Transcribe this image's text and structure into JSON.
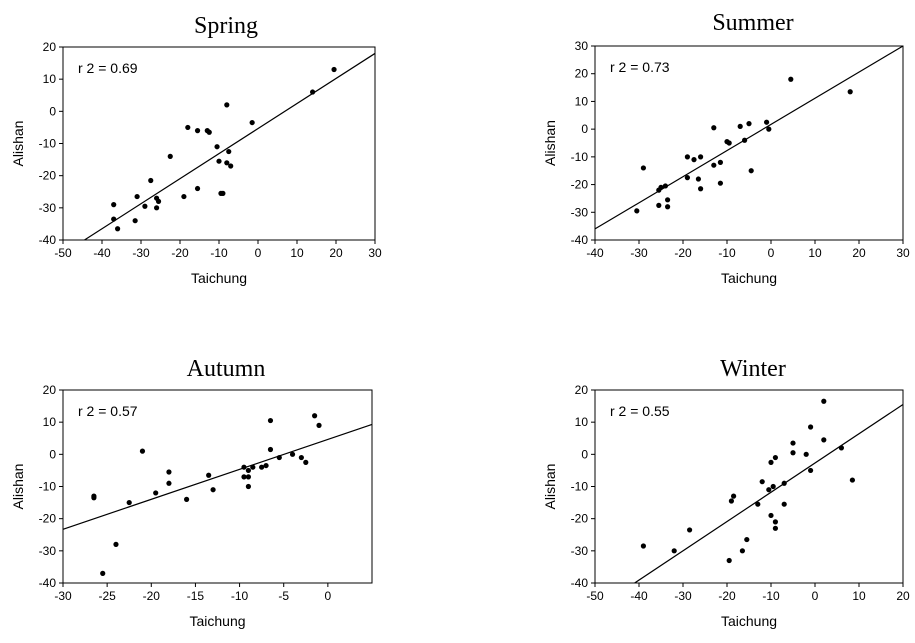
{
  "chart_data": [
    {
      "type": "scatter",
      "title": "Spring",
      "xlabel": "Taichung",
      "ylabel": "Alishan",
      "annotation": "r 2 = 0.69",
      "xlim": [
        -50,
        30
      ],
      "ylim": [
        -40,
        20
      ],
      "xticks": [
        -50,
        -40,
        -30,
        -20,
        -10,
        0,
        10,
        20,
        30
      ],
      "yticks": [
        -40,
        -30,
        -20,
        -10,
        0,
        10,
        20
      ],
      "grid": false,
      "fit_line": [
        [
          -44.5,
          -40
        ],
        [
          30,
          18
        ]
      ],
      "points": [
        [
          19.5,
          13
        ],
        [
          14,
          6
        ],
        [
          -1.5,
          -3.5
        ],
        [
          -8,
          2
        ],
        [
          -7.5,
          -12.5
        ],
        [
          -7,
          -17
        ],
        [
          -8,
          -16
        ],
        [
          -10,
          -15.5
        ],
        [
          -12.5,
          -6.5
        ],
        [
          -13,
          -6
        ],
        [
          -15.5,
          -6
        ],
        [
          -18,
          -5
        ],
        [
          -22.5,
          -14
        ],
        [
          -10.5,
          -11
        ],
        [
          -15.5,
          -24
        ],
        [
          -19,
          -26.5
        ],
        [
          -9.5,
          -25.5
        ],
        [
          -9,
          -25.5
        ],
        [
          -27.5,
          -21.5
        ],
        [
          -26,
          -27
        ],
        [
          -25.5,
          -28
        ],
        [
          -26,
          -30
        ],
        [
          -29,
          -29.5
        ],
        [
          -31,
          -26.5
        ],
        [
          -31.5,
          -34
        ],
        [
          -37,
          -33.5
        ],
        [
          -37,
          -29
        ],
        [
          -36,
          -36.5
        ]
      ]
    },
    {
      "type": "scatter",
      "title": "Summer",
      "xlabel": "Taichung",
      "ylabel": "Alishan",
      "annotation": "r 2 = 0.73",
      "xlim": [
        -40,
        30
      ],
      "ylim": [
        -40,
        30
      ],
      "xticks": [
        -40,
        -30,
        -20,
        -10,
        0,
        10,
        20,
        30
      ],
      "yticks": [
        -40,
        -30,
        -20,
        -10,
        0,
        10,
        20,
        30
      ],
      "grid": false,
      "fit_line": [
        [
          -40,
          -36
        ],
        [
          30,
          30
        ]
      ],
      "points": [
        [
          4.5,
          18
        ],
        [
          18,
          13.5
        ],
        [
          -1,
          2.5
        ],
        [
          -0.5,
          0
        ],
        [
          -5,
          2
        ],
        [
          -7,
          1
        ],
        [
          -13,
          0.5
        ],
        [
          -6,
          -4
        ],
        [
          -10,
          -4.5
        ],
        [
          -9.5,
          -5
        ],
        [
          -11.5,
          -12
        ],
        [
          -13,
          -13
        ],
        [
          -16,
          -10
        ],
        [
          -17.5,
          -11
        ],
        [
          -19,
          -10
        ],
        [
          -4.5,
          -15
        ],
        [
          -11.5,
          -19.5
        ],
        [
          -16.5,
          -18
        ],
        [
          -16,
          -21.5
        ],
        [
          -19,
          -17.5
        ],
        [
          -24,
          -20.5
        ],
        [
          -25,
          -21
        ],
        [
          -25.5,
          -22
        ],
        [
          -29,
          -14
        ],
        [
          -23.5,
          -25.5
        ],
        [
          -23.5,
          -28
        ],
        [
          -25.5,
          -27.5
        ],
        [
          -30.5,
          -29.5
        ]
      ]
    },
    {
      "type": "scatter",
      "title": "Autumn",
      "xlabel": "Taichung",
      "ylabel": "Alishan",
      "annotation": "r 2 = 0.57",
      "xlim": [
        -30,
        5
      ],
      "ylim": [
        -40,
        20
      ],
      "xticks": [
        -30,
        -25,
        -20,
        -15,
        -10,
        -5,
        0
      ],
      "yticks": [
        -40,
        -30,
        -20,
        -10,
        0,
        10,
        20
      ],
      "grid": false,
      "fit_line": [
        [
          -30,
          -23.3
        ],
        [
          5,
          9.3
        ]
      ],
      "points": [
        [
          -1.5,
          12
        ],
        [
          -1,
          9
        ],
        [
          -6.5,
          10.5
        ],
        [
          -21,
          1
        ],
        [
          -6.5,
          1.5
        ],
        [
          -2.5,
          -2.5
        ],
        [
          -3,
          -1
        ],
        [
          -4,
          0
        ],
        [
          -5.5,
          -1
        ],
        [
          -7,
          -3.5
        ],
        [
          -7.5,
          -4
        ],
        [
          -8.5,
          -4
        ],
        [
          -9,
          -5
        ],
        [
          -9,
          -7
        ],
        [
          -9.5,
          -7
        ],
        [
          -9,
          -10
        ],
        [
          -9.5,
          -4
        ],
        [
          -13.5,
          -6.5
        ],
        [
          -13,
          -11
        ],
        [
          -16,
          -14
        ],
        [
          -18,
          -5.5
        ],
        [
          -18,
          -9
        ],
        [
          -19.5,
          -12
        ],
        [
          -22.5,
          -15
        ],
        [
          -26.5,
          -13.5
        ],
        [
          -26.5,
          -13
        ],
        [
          -24,
          -28
        ],
        [
          -25.5,
          -37
        ]
      ]
    },
    {
      "type": "scatter",
      "title": "Winter",
      "xlabel": "Taichung",
      "ylabel": "Alishan",
      "annotation": "r 2 = 0.55",
      "xlim": [
        -50,
        20
      ],
      "ylim": [
        -40,
        20
      ],
      "xticks": [
        -50,
        -40,
        -30,
        -20,
        -10,
        0,
        10,
        20
      ],
      "yticks": [
        -40,
        -30,
        -20,
        -10,
        0,
        10,
        20
      ],
      "grid": false,
      "fit_line": [
        [
          -41,
          -40
        ],
        [
          20,
          15.5
        ]
      ],
      "points": [
        [
          2,
          16.5
        ],
        [
          -1,
          8.5
        ],
        [
          2,
          4.5
        ],
        [
          6,
          2
        ],
        [
          -5,
          3.5
        ],
        [
          -5,
          0.5
        ],
        [
          -2,
          0
        ],
        [
          -9,
          -1
        ],
        [
          -10,
          -2.5
        ],
        [
          -1,
          -5
        ],
        [
          8.5,
          -8
        ],
        [
          -12,
          -8.5
        ],
        [
          -7,
          -9
        ],
        [
          -9.5,
          -10
        ],
        [
          -10.5,
          -11
        ],
        [
          -10,
          -19
        ],
        [
          -9,
          -21
        ],
        [
          -9,
          -23
        ],
        [
          -7,
          -15.5
        ],
        [
          -13,
          -15.5
        ],
        [
          -18.5,
          -13
        ],
        [
          -19,
          -14.5
        ],
        [
          -15.5,
          -26.5
        ],
        [
          -16.5,
          -30
        ],
        [
          -19.5,
          -33
        ],
        [
          -28.5,
          -23.5
        ],
        [
          -32,
          -30
        ],
        [
          -39,
          -28.5
        ]
      ]
    }
  ]
}
